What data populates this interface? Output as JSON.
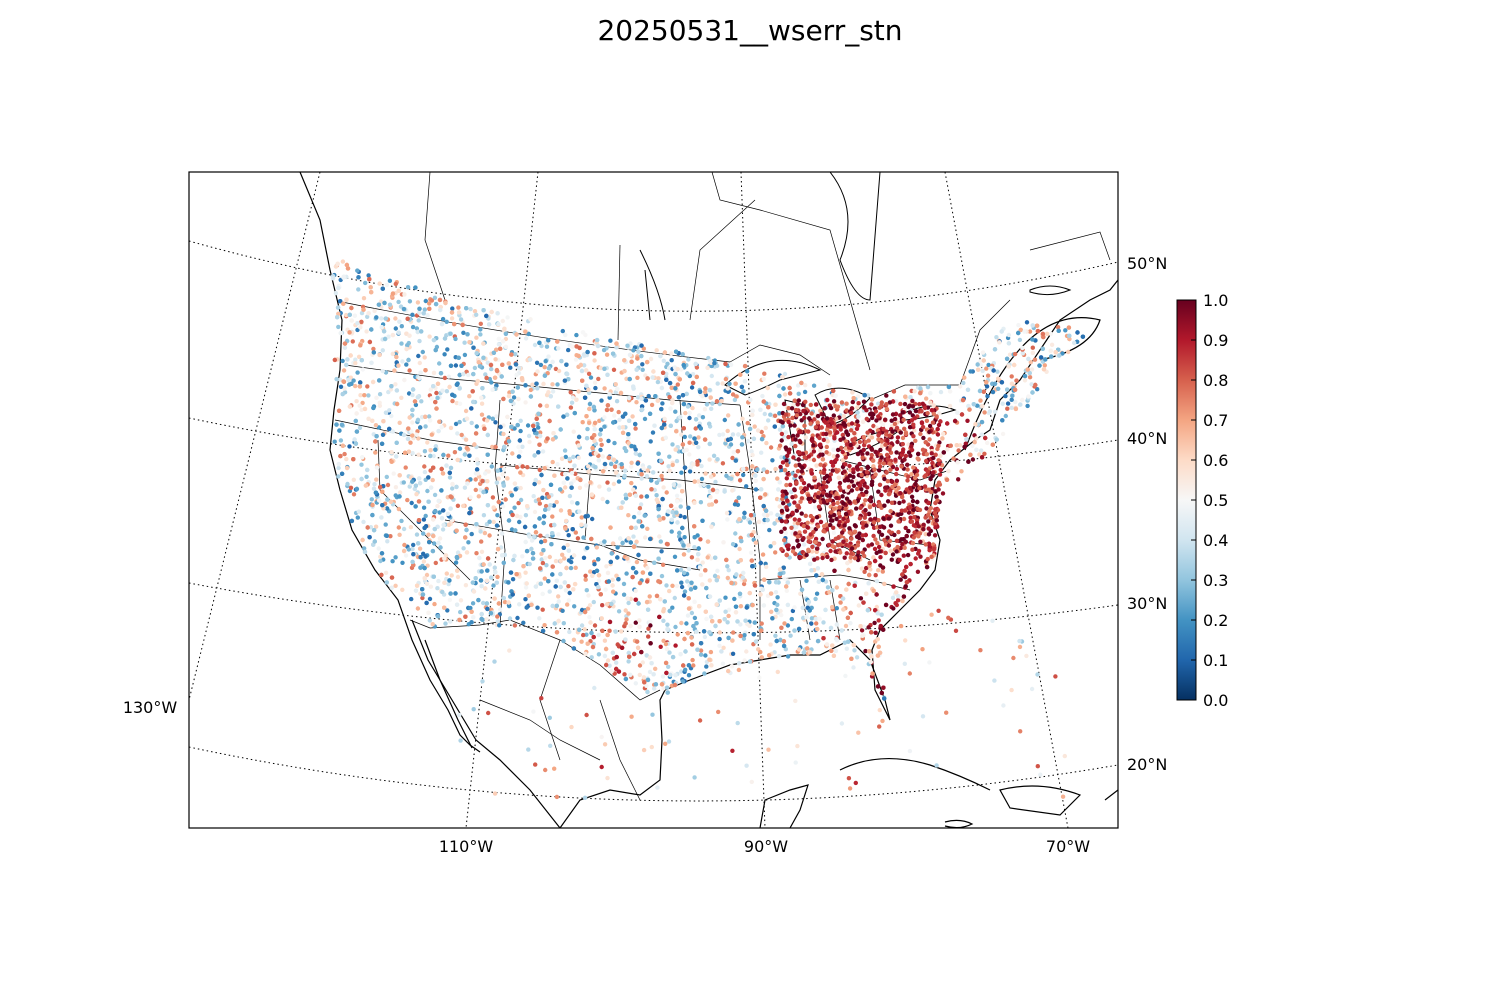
{
  "title": "20250531__wserr_stn",
  "map": {
    "projection": "lambert-conformal",
    "meridians": [
      "130°W",
      "110°W",
      "90°W",
      "70°W"
    ],
    "parallels": [
      "20°N",
      "30°N",
      "40°N",
      "50°N"
    ],
    "graticule_style": "dotted"
  },
  "colorbar": {
    "colormap": "RdBu_r",
    "ticks": [
      "0.0",
      "0.1",
      "0.2",
      "0.3",
      "0.4",
      "0.5",
      "0.6",
      "0.7",
      "0.8",
      "0.9",
      "1.0"
    ],
    "range": [
      0.0,
      1.0
    ]
  },
  "colors": {
    "low": "#053061",
    "mid": "#f7f7f7",
    "high": "#67001f"
  },
  "chart_data": {
    "type": "scatter",
    "title": "20250531__wserr_stn",
    "value_range": [
      0.0,
      1.0
    ],
    "description_of_distribution": "station markers colored by value; high values concentrated in mid-Atlantic/Ohio Valley and central Texas, mixed low/mid values across the West and Plains"
  }
}
